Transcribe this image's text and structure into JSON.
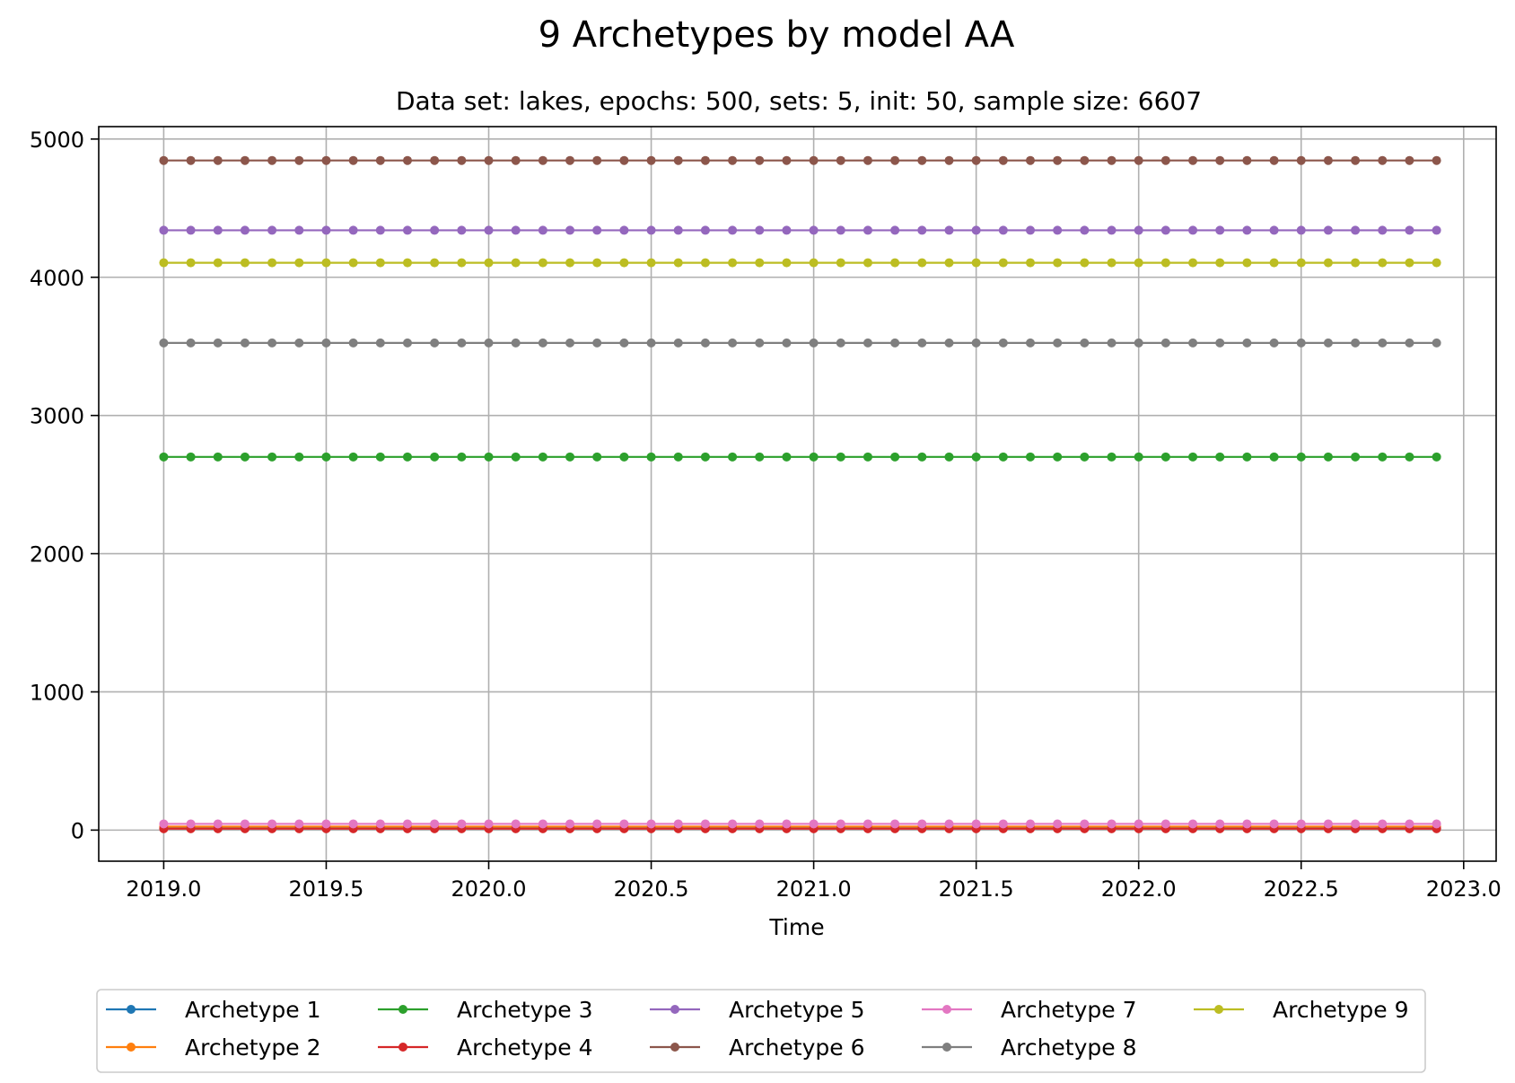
{
  "chart_data": {
    "type": "line",
    "title": "9 Archetypes by model AA",
    "subtitle": "Data set: lakes, epochs: 500, sets: 5, init: 50, sample size: 6607",
    "xlabel": "Time",
    "ylabel": "",
    "xlim": [
      2018.8,
      2023.1
    ],
    "ylim": [
      -225,
      5090
    ],
    "xticks": [
      2019.0,
      2019.5,
      2020.0,
      2020.5,
      2021.0,
      2021.5,
      2022.0,
      2022.5,
      2023.0
    ],
    "xtick_labels": [
      "2019.0",
      "2019.5",
      "2020.0",
      "2020.5",
      "2021.0",
      "2021.5",
      "2022.0",
      "2022.5",
      "2023.0"
    ],
    "yticks": [
      0,
      1000,
      2000,
      3000,
      4000,
      5000
    ],
    "ytick_labels": [
      "0",
      "1000",
      "2000",
      "3000",
      "4000",
      "5000"
    ],
    "grid": true,
    "legend_position": "bottom-center",
    "x": [
      2019.0,
      2019.0833,
      2019.1667,
      2019.25,
      2019.3333,
      2019.4167,
      2019.5,
      2019.5833,
      2019.6667,
      2019.75,
      2019.8333,
      2019.9167,
      2020.0,
      2020.0833,
      2020.1667,
      2020.25,
      2020.3333,
      2020.4167,
      2020.5,
      2020.5833,
      2020.6667,
      2020.75,
      2020.8333,
      2020.9167,
      2021.0,
      2021.0833,
      2021.1667,
      2021.25,
      2021.3333,
      2021.4167,
      2021.5,
      2021.5833,
      2021.6667,
      2021.75,
      2021.8333,
      2021.9167,
      2022.0,
      2022.0833,
      2022.1667,
      2022.25,
      2022.3333,
      2022.4167,
      2022.5,
      2022.5833,
      2022.6667,
      2022.75,
      2022.8333,
      2022.9167
    ],
    "series": [
      {
        "name": "Archetype 1",
        "color": "#1f77b4",
        "value": 15
      },
      {
        "name": "Archetype 2",
        "color": "#ff7f0e",
        "value": 25
      },
      {
        "name": "Archetype 3",
        "color": "#2ca02c",
        "value": 2700
      },
      {
        "name": "Archetype 4",
        "color": "#d62728",
        "value": 10
      },
      {
        "name": "Archetype 5",
        "color": "#9467bd",
        "value": 4340
      },
      {
        "name": "Archetype 6",
        "color": "#8c564b",
        "value": 4845
      },
      {
        "name": "Archetype 7",
        "color": "#e377c2",
        "value": 45
      },
      {
        "name": "Archetype 8",
        "color": "#7f7f7f",
        "value": 3525
      },
      {
        "name": "Archetype 9",
        "color": "#bcbd22",
        "value": 4105
      }
    ]
  }
}
